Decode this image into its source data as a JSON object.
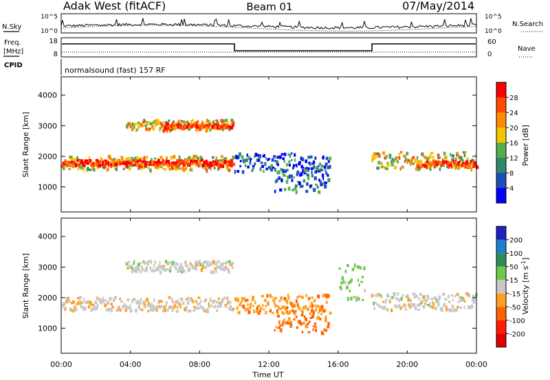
{
  "header": {
    "station": "Adak West (fitACF)",
    "beam": "Beam 01",
    "date": "07/May/2014"
  },
  "nsky_panel": {
    "left_label": "N.Sky",
    "right_label": "N.Search",
    "ticks": [
      "10^5",
      "10^0"
    ]
  },
  "freq_panel": {
    "left_label_line1": "Freq.",
    "left_label_line2": "[MHz]",
    "right_label": "Nave",
    "left_ticks": [
      "18",
      "8"
    ],
    "right_ticks": [
      "60",
      "0"
    ]
  },
  "cpid_panel": {
    "label": "CPID",
    "program": "normalsound (fast) 157 RF"
  },
  "chart_data": [
    {
      "type": "heatmap",
      "name": "power",
      "ylabel": "Slant Range [km]",
      "ylim": [
        180,
        4600
      ],
      "yticks": [
        "1000",
        "2000",
        "3000",
        "4000"
      ],
      "colorbar_label": "Power [dB]",
      "colorbar_ticks": [
        "4",
        "8",
        "12",
        "16",
        "20",
        "24",
        "28"
      ],
      "colors": [
        "#0000ff",
        "#1e4fb4",
        "#2f8a6a",
        "#55ad4f",
        "#f5c400",
        "#ff8a00",
        "#ff4a00",
        "#ff0000"
      ],
      "regions": [
        {
          "t0": 0.0,
          "t1": 9.9,
          "r0": 1560,
          "r1": 2020,
          "level": 0.55
        },
        {
          "t0": 0.0,
          "t1": 9.9,
          "r0": 1700,
          "r1": 1880,
          "level": 0.9
        },
        {
          "t0": 3.7,
          "t1": 9.9,
          "r0": 2850,
          "r1": 3200,
          "level": 0.6
        },
        {
          "t0": 5.8,
          "t1": 9.9,
          "r0": 2930,
          "r1": 3070,
          "level": 0.85
        },
        {
          "t0": 10.0,
          "t1": 15.5,
          "r0": 1500,
          "r1": 2100,
          "level": 0.2
        },
        {
          "t0": 12.3,
          "t1": 15.4,
          "r0": 850,
          "r1": 1600,
          "level": 0.25
        },
        {
          "t0": 17.9,
          "t1": 24.0,
          "r0": 1600,
          "r1": 2150,
          "level": 0.55
        },
        {
          "t0": 20.5,
          "t1": 24.0,
          "r0": 1650,
          "r1": 1850,
          "level": 0.8
        }
      ]
    },
    {
      "type": "heatmap",
      "name": "velocity",
      "ylabel": "Slant Range [km]",
      "ylim": [
        180,
        4600
      ],
      "yticks": [
        "1000",
        "2000",
        "3000",
        "4000"
      ],
      "colorbar_label": "Velocity [m s",
      "colorbar_label_sup": "-1",
      "colorbar_label_end": "]",
      "colorbar_ticks": [
        "200",
        "100",
        "50",
        "15",
        "-15",
        "-50",
        "-100",
        "-200"
      ],
      "colors": [
        "#2020c0",
        "#1e7fd0",
        "#2e8b57",
        "#6dc94a",
        "#c8c8c8",
        "#ffa020",
        "#ff6000",
        "#ff1a00",
        "#e00000"
      ],
      "regions": [
        {
          "t0": 0.0,
          "t1": 9.9,
          "r0": 1560,
          "r1": 2020,
          "level": -5
        },
        {
          "t0": 3.7,
          "t1": 9.9,
          "r0": 2850,
          "r1": 3200,
          "level": 0
        },
        {
          "t0": 10.0,
          "t1": 15.5,
          "r0": 1500,
          "r1": 2100,
          "level": -40
        },
        {
          "t0": 12.3,
          "t1": 15.4,
          "r0": 850,
          "r1": 1600,
          "level": -60
        },
        {
          "t0": 17.9,
          "t1": 24.0,
          "r0": 1600,
          "r1": 2150,
          "level": 0
        },
        {
          "t0": 16.0,
          "t1": 17.5,
          "r0": 1900,
          "r1": 3100,
          "level": 30
        }
      ]
    }
  ],
  "xaxis": {
    "label": "Time UT",
    "ticks": [
      "00:00",
      "04:00",
      "08:00",
      "12:00",
      "16:00",
      "20:00",
      "00:00"
    ]
  }
}
